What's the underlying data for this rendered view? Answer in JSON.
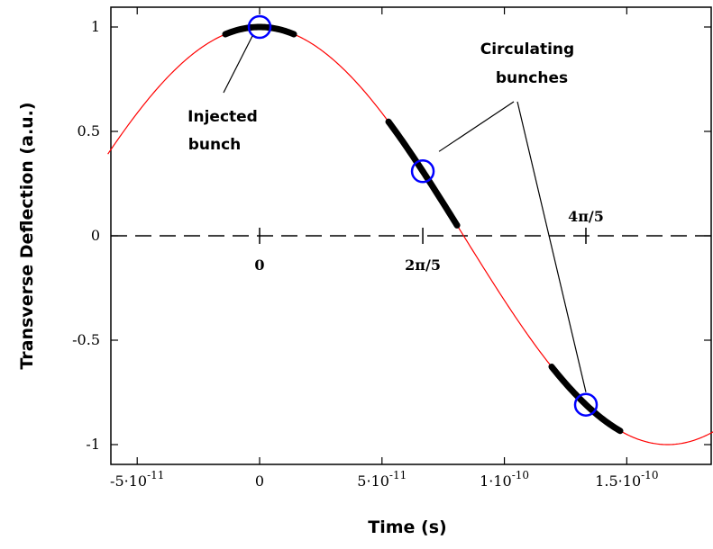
{
  "chart_data": {
    "type": "line",
    "xlabel": "Time (s)",
    "ylabel": "Transverse Deflection (a.u.)",
    "xlim": [
      -6.2e-11,
      1.9e-10
    ],
    "ylim": [
      -1.1,
      1.1
    ],
    "grid": false,
    "x_ticks": [
      {
        "value": -5e-11,
        "label": "-5·10",
        "exp": "-11"
      },
      {
        "value": 0,
        "label": "0",
        "exp": ""
      },
      {
        "value": 5e-11,
        "label": "5·10",
        "exp": "-11"
      },
      {
        "value": 1e-10,
        "label": "1·10",
        "exp": "-10"
      },
      {
        "value": 1.5e-10,
        "label": "1.5·10",
        "exp": "-10"
      }
    ],
    "y_ticks": [
      {
        "value": 1,
        "label": "1"
      },
      {
        "value": 0.5,
        "label": "0.5"
      },
      {
        "value": 0,
        "label": "0"
      },
      {
        "value": -0.5,
        "label": "-0.5"
      },
      {
        "value": -1,
        "label": "-1"
      }
    ],
    "series": [
      {
        "color": "#ff0000",
        "function": "cos(2*pi*f*t)",
        "frequency_hz": 3000000000.0,
        "t_range": [
          -6.2e-11,
          1.9e-10
        ]
      }
    ],
    "bunches": [
      {
        "center_time": 0,
        "half_width": 1.4e-11
      },
      {
        "center_time": 6.667e-11,
        "half_width": 1.4e-11
      },
      {
        "center_time": 1.333e-10,
        "half_width": 1.4e-11
      }
    ],
    "markers": [
      {
        "time": 0,
        "value": 1.0
      },
      {
        "time": 6.667e-11,
        "value": 0.309
      },
      {
        "time": 1.333e-10,
        "value": -0.809
      }
    ],
    "phase_ticks": [
      {
        "time": 0,
        "label": "0"
      },
      {
        "time": 6.667e-11,
        "label": "2π/5"
      },
      {
        "time": 1.333e-10,
        "label": "4π/5"
      }
    ],
    "annotations": [
      {
        "text_lines": [
          "Injected",
          "bunch"
        ],
        "target_marker": 0
      },
      {
        "text_lines": [
          "Circulating",
          "bunches"
        ],
        "target_markers": [
          1,
          2
        ]
      }
    ],
    "colors": {
      "curve": "#ff0000",
      "marker": "#0000ff",
      "bunch": "#000000",
      "axis": "#000000"
    }
  }
}
